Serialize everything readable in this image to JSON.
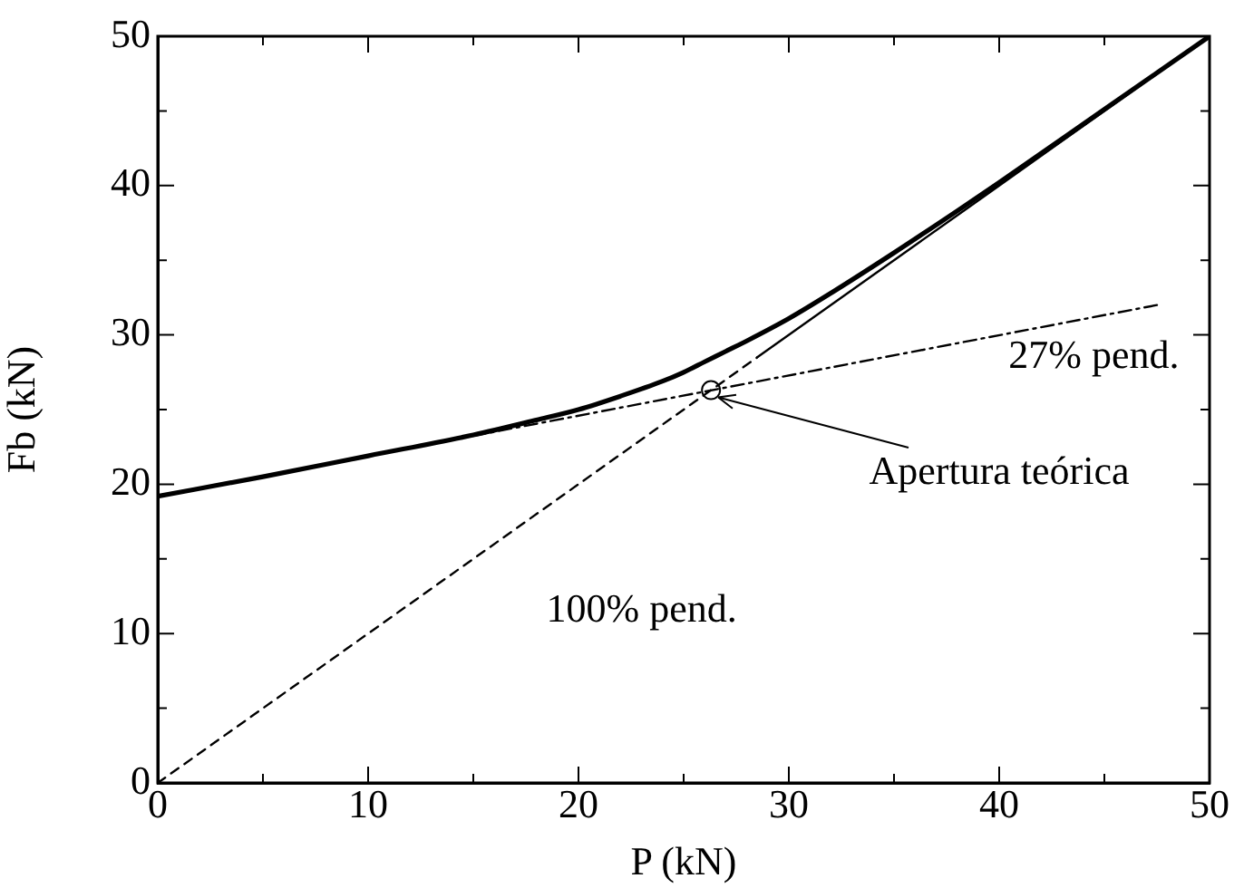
{
  "chart_data": {
    "type": "line",
    "xlabel": "P (kN)",
    "ylabel": "Fb (kN)",
    "xlim": [
      0,
      50
    ],
    "ylim": [
      0,
      50
    ],
    "xticks": [
      0,
      {
        "value": 5,
        "label": null
      },
      10,
      {
        "value": 15,
        "label": null
      },
      20,
      {
        "value": 25,
        "label": null
      },
      30,
      {
        "value": 35,
        "label": null
      },
      40,
      {
        "value": 45,
        "label": null
      },
      50
    ],
    "yticks": [
      0,
      {
        "value": 5,
        "label": null
      },
      10,
      {
        "value": 15,
        "label": null
      },
      20,
      {
        "value": 25,
        "label": null
      },
      30,
      {
        "value": 35,
        "label": null
      },
      40,
      {
        "value": 45,
        "label": null
      },
      50
    ],
    "grid": false,
    "legend": false,
    "marker": "none",
    "line_style": "solid",
    "series": [
      {
        "color": "#000000",
        "x": [
          0,
          5,
          10,
          15,
          18,
          20,
          22,
          24,
          25,
          26,
          27,
          28,
          30,
          32,
          35,
          38,
          40,
          45,
          50
        ],
        "values": [
          19.2,
          20.5,
          21.9,
          23.3,
          24.3,
          25.0,
          25.9,
          26.9,
          27.5,
          28.2,
          28.9,
          29.6,
          31.1,
          32.8,
          35.5,
          38.3,
          40.2,
          45.1,
          50
        ]
      },
      {
        "color": "#000000",
        "line_style": "dashed",
        "x": [
          0,
          28.5
        ],
        "values": [
          0,
          28.5
        ]
      },
      {
        "color": "#000000",
        "x": [
          28.5,
          50
        ],
        "values": [
          28.5,
          50
        ]
      },
      {
        "color": "#000000",
        "line_style": "dashdot",
        "x": [
          47.5,
          0
        ],
        "values": [
          32.0,
          19.2
        ]
      },
      {
        "type": "scatter",
        "color": "#000000",
        "marker": "circle",
        "x": [
          26.3
        ],
        "values": [
          26.3
        ]
      }
    ],
    "annotations": [
      "27% pend.",
      {
        "text": "Apertura teórica",
        "x": 26.3,
        "y": 26.3
      },
      "100% pend."
    ]
  }
}
